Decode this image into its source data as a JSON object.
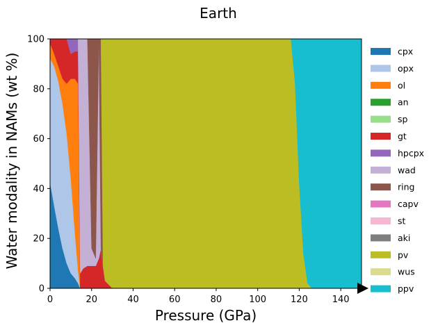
{
  "chart_data": {
    "type": "area",
    "stacked": true,
    "title": "Earth",
    "xlabel": "Pressure (GPa)",
    "ylabel": "Water modality in NAMs (wt %)",
    "xlim": [
      0,
      150
    ],
    "ylim": [
      0,
      100
    ],
    "xticks": [
      "0",
      "20",
      "40",
      "60",
      "80",
      "100",
      "120",
      "140"
    ],
    "yticks": [
      "0",
      "20",
      "40",
      "60",
      "80",
      "100"
    ],
    "grid": false,
    "legend_position": "outside-right",
    "x": [
      0.1,
      2,
      4,
      6,
      8,
      10,
      12,
      13.5,
      14.5,
      16,
      18,
      20,
      22,
      23.5,
      24.5,
      25.5,
      26.5,
      30,
      60,
      100,
      116,
      118,
      120,
      122,
      124,
      126,
      130,
      140,
      150
    ],
    "series": [
      {
        "name": "cpx",
        "color": "#1f77b4",
        "values": [
          42,
          33,
          24,
          16,
          10,
          6,
          4,
          2,
          0,
          0,
          0,
          0,
          0,
          0,
          0,
          0,
          0,
          0,
          0,
          0,
          0,
          0,
          0,
          0,
          0,
          0,
          0,
          0,
          0
        ]
      },
      {
        "name": "opx",
        "color": "#aec7e8",
        "values": [
          50,
          56,
          59,
          58,
          52,
          38,
          18,
          5,
          0,
          0,
          0,
          0,
          0,
          0,
          0,
          0,
          0,
          0,
          0,
          0,
          0,
          0,
          0,
          0,
          0,
          0,
          0,
          0,
          0
        ]
      },
      {
        "name": "ol",
        "color": "#ff7f0e",
        "values": [
          6,
          5,
          6,
          10,
          20,
          40,
          62,
          75,
          0,
          0,
          0,
          0,
          0,
          0,
          0,
          0,
          0,
          0,
          0,
          0,
          0,
          0,
          0,
          0,
          0,
          0,
          0,
          0,
          0
        ]
      },
      {
        "name": "an",
        "color": "#2ca02c",
        "values": [
          0,
          0,
          0,
          0,
          0,
          0,
          0,
          0,
          0,
          0,
          0,
          0,
          0,
          0,
          0,
          0,
          0,
          0,
          0,
          0,
          0,
          0,
          0,
          0,
          0,
          0,
          0,
          0,
          0
        ]
      },
      {
        "name": "sp",
        "color": "#98df8a",
        "values": [
          0,
          0,
          0,
          0,
          0,
          0,
          0,
          0,
          0,
          0,
          0,
          0,
          0,
          0,
          0,
          0,
          0,
          0,
          0,
          0,
          0,
          0,
          0,
          0,
          0,
          0,
          0,
          0,
          0
        ]
      },
      {
        "name": "gt",
        "color": "#d62728",
        "values": [
          2,
          6,
          11,
          16,
          18,
          10,
          11,
          13,
          6,
          8,
          9,
          9,
          9,
          12,
          16,
          9,
          3,
          0,
          0,
          0,
          0,
          0,
          0,
          0,
          0,
          0,
          0,
          0,
          0
        ]
      },
      {
        "name": "hpcpx",
        "color": "#9467bd",
        "values": [
          0,
          0,
          0,
          0,
          0,
          6,
          5,
          5,
          0,
          0,
          0,
          0,
          0,
          0,
          0,
          0,
          0,
          0,
          0,
          0,
          0,
          0,
          0,
          0,
          0,
          0,
          0,
          0,
          0
        ]
      },
      {
        "name": "wad",
        "color": "#c5b0d5",
        "values": [
          0,
          0,
          0,
          0,
          0,
          0,
          0,
          0,
          94,
          92,
          91,
          7,
          3,
          88,
          0,
          0,
          0,
          0,
          0,
          0,
          0,
          0,
          0,
          0,
          0,
          0,
          0,
          0,
          0
        ]
      },
      {
        "name": "ring",
        "color": "#8c564b",
        "values": [
          0,
          0,
          0,
          0,
          0,
          0,
          0,
          0,
          0,
          0,
          0,
          84,
          88,
          0,
          84,
          0,
          0,
          0,
          0,
          0,
          0,
          0,
          0,
          0,
          0,
          0,
          0,
          0,
          0
        ]
      },
      {
        "name": "capv",
        "color": "#e377c2",
        "values": [
          0,
          0,
          0,
          0,
          0,
          0,
          0,
          0,
          0,
          0,
          0,
          0,
          0,
          0,
          0,
          0,
          0,
          0,
          0,
          0,
          0,
          0,
          0,
          0,
          0,
          0,
          0,
          0,
          0
        ]
      },
      {
        "name": "st",
        "color": "#f7b6d2",
        "values": [
          0,
          0,
          0,
          0,
          0,
          0,
          0,
          0,
          0,
          0,
          0,
          0,
          0,
          0,
          0,
          0,
          0,
          0,
          0,
          0,
          0,
          0,
          0,
          0,
          0,
          0,
          0,
          0,
          0
        ]
      },
      {
        "name": "aki",
        "color": "#7f7f7f",
        "values": [
          0,
          0,
          0,
          0,
          0,
          0,
          0,
          0,
          0,
          0,
          0,
          0,
          0,
          0,
          0,
          0,
          0,
          0,
          0,
          0,
          0,
          0,
          0,
          0,
          0,
          0,
          0,
          0,
          0
        ]
      },
      {
        "name": "pv",
        "color": "#bcbd22",
        "values": [
          0,
          0,
          0,
          0,
          0,
          0,
          0,
          0,
          0,
          0,
          0,
          0,
          0,
          0,
          0,
          91,
          97,
          100,
          100,
          100,
          100,
          82,
          42,
          14,
          2,
          0,
          0,
          0,
          0
        ]
      },
      {
        "name": "wus",
        "color": "#dbdb8d",
        "values": [
          0,
          0,
          0,
          0,
          0,
          0,
          0,
          0,
          0,
          0,
          0,
          0,
          0,
          0,
          0,
          0,
          0,
          0,
          0,
          0,
          0,
          0,
          0,
          0,
          0,
          0,
          0,
          0,
          0
        ]
      },
      {
        "name": "ppv",
        "color": "#17becf",
        "values": [
          0,
          0,
          0,
          0,
          0,
          0,
          0,
          0,
          0,
          0,
          0,
          0,
          0,
          0,
          0,
          0,
          0,
          0,
          0,
          0,
          0,
          18,
          58,
          86,
          98,
          100,
          100,
          100,
          100
        ]
      }
    ]
  }
}
